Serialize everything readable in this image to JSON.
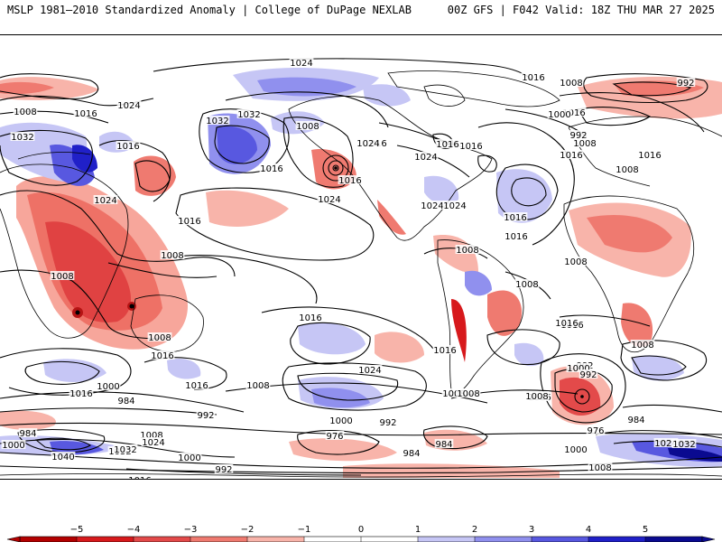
{
  "header": {
    "title_left": "MSLP 1981–2010 Standardized Anomaly | College of DuPage NEXLAB",
    "title_right": "00Z GFS | F042 Valid: 18Z THU MAR 27 2025"
  },
  "colorbar": {
    "ticks": [
      "−5",
      "−4",
      "−3",
      "−2",
      "−1",
      "0",
      "1",
      "2",
      "3",
      "4",
      "5"
    ],
    "colors": [
      "#b30000",
      "#d7191c",
      "#e34a4a",
      "#ef7a70",
      "#f8b4aa",
      "#ffffff",
      "#ffffff",
      "#c6c6f5",
      "#9090ee",
      "#5858e0",
      "#2020c8",
      "#0a0a90"
    ]
  },
  "map": {
    "contour_labels": [
      "1024",
      "1016",
      "1024",
      "1008",
      "1016",
      "1008",
      "1032",
      "1016",
      "1024",
      "1016",
      "1024",
      "1032",
      "1032",
      "1016",
      "1016",
      "1016",
      "1024",
      "1008",
      "1016",
      "1016",
      "992",
      "1008",
      "1016",
      "1000",
      "992",
      "1008",
      "1016",
      "1024",
      "1016",
      "1024",
      "1016",
      "1024",
      "1016",
      "1008",
      "1008",
      "1008",
      "1008",
      "1024",
      "1016",
      "1016",
      "1008",
      "1008",
      "1016",
      "1008",
      "1016",
      "1016",
      "1016",
      "1000",
      "992",
      "984",
      "1016",
      "1008",
      "1008",
      "1000",
      "984",
      "992",
      "1008",
      "1000",
      "992",
      "1008",
      "1016",
      "1000",
      "976",
      "984",
      "976",
      "984",
      "1024",
      "1032",
      "1032",
      "1008",
      "992",
      "1000",
      "984",
      "1040",
      "1032",
      "1008",
      "1024",
      "1000",
      "992",
      "1016"
    ]
  }
}
